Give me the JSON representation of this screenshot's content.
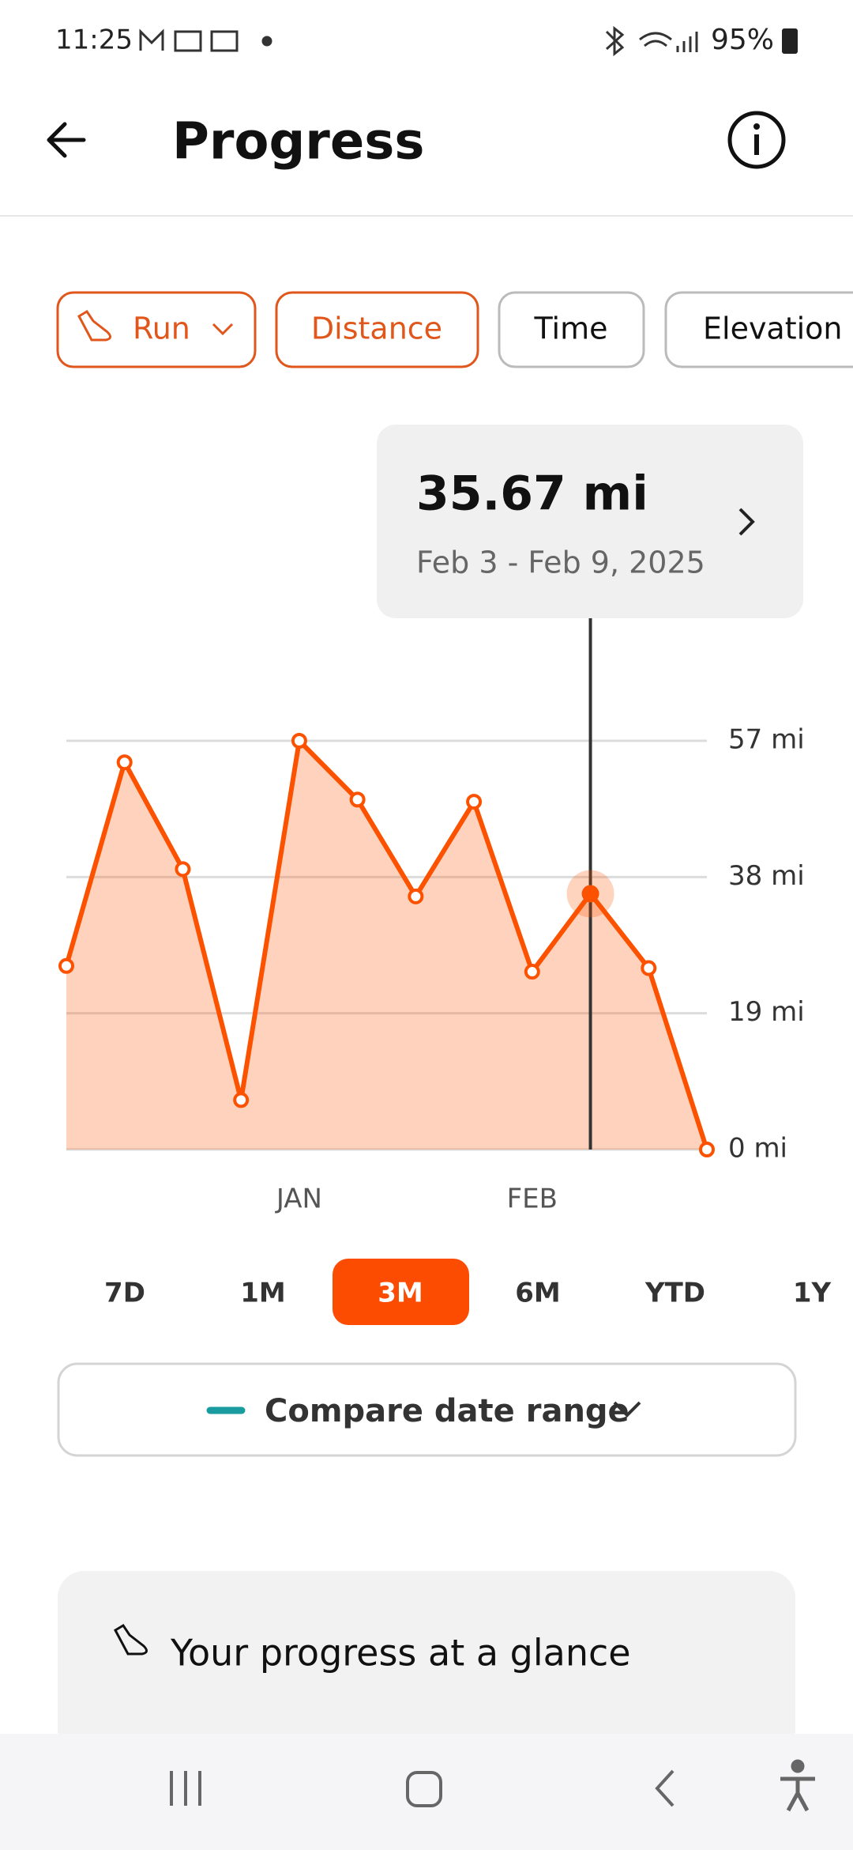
{
  "status_bar": {
    "time": "11:25",
    "battery": "95%"
  },
  "header": {
    "title": "Progress"
  },
  "filters": [
    "Run",
    "Distance",
    "Time",
    "Elevation Gain"
  ],
  "chart_data": {
    "type": "line",
    "categories": [
      null,
      null,
      null,
      null,
      "JAN",
      null,
      null,
      null,
      "FEB",
      null,
      null,
      null
    ],
    "series": [
      {
        "color": "#fc5200",
        "values": [
          25.6,
          54.0,
          39.1,
          6.9,
          57.0,
          48.8,
          35.3,
          48.5,
          24.8,
          35.67,
          25.3,
          0
        ]
      }
    ],
    "value_labels": [
      null,
      null,
      null,
      null,
      null,
      null,
      null,
      null,
      null,
      "35.67 mi",
      null,
      null
    ],
    "tooltip_date": "Feb 3 - Feb 9, 2025",
    "ylim": [
      0,
      57
    ],
    "yticks": [
      {
        "value": 0,
        "label": "0 mi"
      },
      {
        "value": 19,
        "label": "19 mi"
      },
      {
        "value": 38,
        "label": "38 mi"
      },
      {
        "value": 57,
        "label": "57 mi"
      }
    ],
    "grid": true,
    "area": true
  },
  "periods": [
    "7D",
    "1M",
    "3M",
    "6M",
    "YTD",
    "1Y"
  ],
  "compare_button": "Compare date range",
  "card": {
    "title": "Your progress at a glance"
  }
}
